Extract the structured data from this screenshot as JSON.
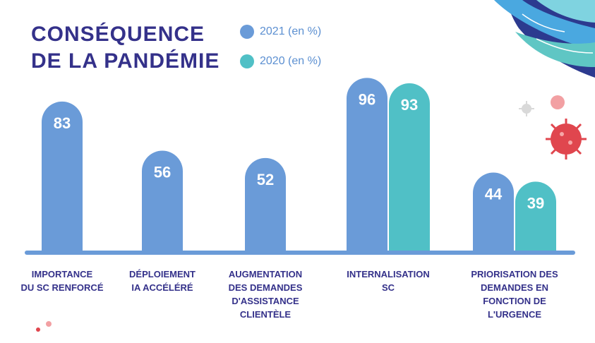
{
  "title_line1": "CONSÉQUENCE",
  "title_line2": "DE LA PANDÉMIE",
  "legend": [
    {
      "label": "2021 (en %)",
      "color": "#6a9bd8"
    },
    {
      "label": "2020 (en %)",
      "color": "#50c0c6"
    }
  ],
  "chart_data": {
    "type": "bar",
    "title": "CONSÉQUENCE DE LA PANDÉMIE",
    "categories": [
      [
        "IMPORTANCE",
        "DU SC RENFORCÉ"
      ],
      [
        "DÉPLOIEMENT",
        "IA ACCÉLÉRÉ"
      ],
      [
        "AUGMENTATION",
        "DES DEMANDES",
        "D'ASSISTANCE",
        "CLIENTÈLE"
      ],
      [
        "INTERNALISATION",
        "SC"
      ],
      [
        "PRIORISATION DES",
        "DEMANDES EN",
        "FONCTION DE",
        "L'URGENCE"
      ]
    ],
    "series": [
      {
        "name": "2021 (en %)",
        "color": "#6a9bd8",
        "values": [
          83,
          56,
          52,
          96,
          44
        ]
      },
      {
        "name": "2020 (en %)",
        "color": "#50c0c6",
        "values": [
          null,
          null,
          null,
          93,
          39
        ]
      }
    ],
    "ylim": [
      0,
      100
    ],
    "baseline_color": "#6a9bd8",
    "label_color": "#34318a",
    "value_label_color": "#ffffff"
  }
}
